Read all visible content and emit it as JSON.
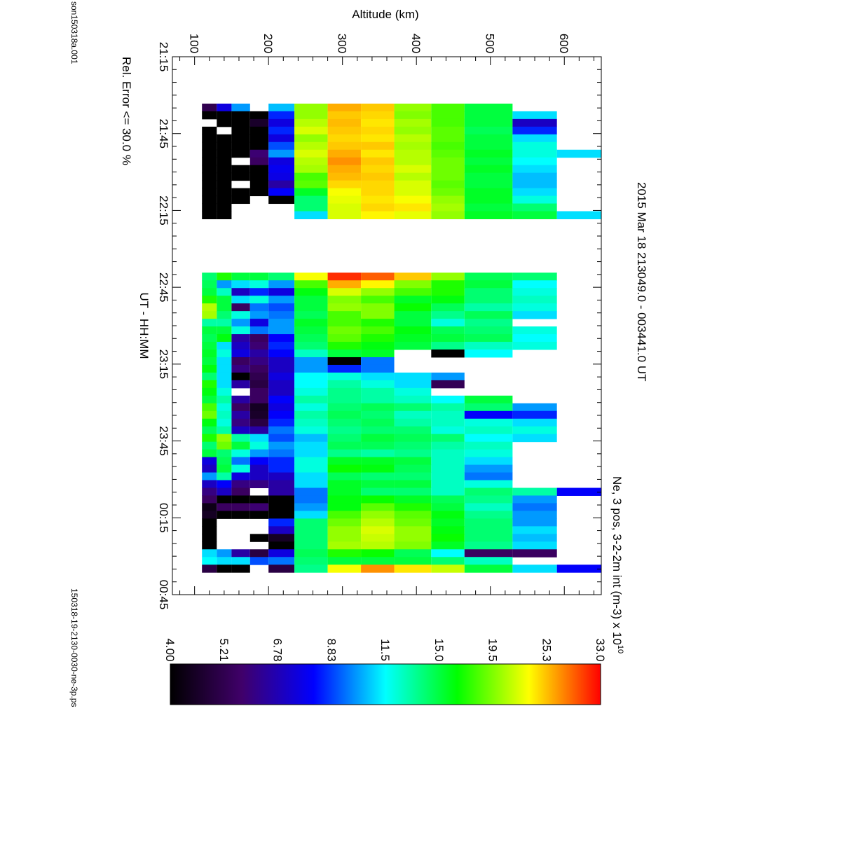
{
  "plot_title_line1": "2015 Mar 18    213049.0 - 003441.0 UT",
  "plot_title_line2": "Ne, 3 pos, 3-2-2m int (m-3) x 10",
  "plot_title_exponent": "10",
  "file_name": "son150318a.001",
  "plot_file": "150318-19-2130-0030-ne-3p.ps",
  "rel_error": "Rel. Error <= 30.0 %",
  "chart_data": {
    "type": "heatmap",
    "ylabel": "Altitude (km)",
    "xlabel": "UT - HH:MM",
    "x_ticks": [
      "21:15",
      "21:45",
      "22:15",
      "22:45",
      "23:15",
      "23:45",
      "00:15",
      "00:45"
    ],
    "y_ticks": [
      "100",
      "200",
      "300",
      "400",
      "500",
      "600"
    ],
    "ylim": [
      70,
      650
    ],
    "colorbar": {
      "tick_labels": [
        "4.00",
        "5.21",
        "6.78",
        "8.83",
        "11.5",
        "15.0",
        "19.5",
        "25.3",
        "33.0"
      ],
      "palette": [
        "#000000",
        "#40006a",
        "#0000ff",
        "#00ffff",
        "#00ff00",
        "#ffff00",
        "#ff0000"
      ]
    },
    "altitude_bins_km": [
      110,
      130,
      150,
      175,
      200,
      235,
      280,
      325,
      370,
      420,
      465,
      530,
      590,
      650
    ],
    "columns": [
      {
        "t": 21.58,
        "v": [
          5.2,
          7.5,
          10.0,
          null,
          10.5,
          20.0,
          26.0,
          25.0,
          20.0,
          18.0,
          15.0
        ]
      },
      {
        "t": 21.63,
        "v": [
          4.0,
          4.0,
          4.0,
          4.0,
          8.5,
          20.0,
          25.0,
          24.5,
          19.5,
          18.0,
          15.0,
          11.0
        ]
      },
      {
        "t": 21.68,
        "v": [
          null,
          4.0,
          4.0,
          4.6,
          7.5,
          21.0,
          25.5,
          24.0,
          20.5,
          18.0,
          15.0,
          7.0
        ]
      },
      {
        "t": 21.73,
        "v": [
          4.0,
          null,
          4.0,
          4.0,
          8.5,
          22.0,
          25.0,
          24.5,
          20.0,
          18.5,
          14.5,
          8.5
        ]
      },
      {
        "t": 21.78,
        "v": [
          4.0,
          4.0,
          4.0,
          4.0,
          7.5,
          20.0,
          24.5,
          24.0,
          21.0,
          18.5,
          15.0,
          11.0
        ]
      },
      {
        "t": 21.83,
        "v": [
          4.0,
          4.0,
          4.0,
          4.0,
          9.0,
          21.0,
          25.0,
          25.0,
          20.5,
          18.0,
          15.0,
          12.0
        ]
      },
      {
        "t": 21.88,
        "v": [
          4.0,
          4.0,
          4.0,
          5.8,
          10.0,
          22.0,
          26.0,
          24.0,
          21.0,
          18.5,
          15.5,
          12.0,
          11.0
        ]
      },
      {
        "t": 21.93,
        "v": [
          4.0,
          4.0,
          null,
          5.5,
          7.5,
          21.0,
          27.0,
          25.0,
          21.0,
          19.0,
          15.0,
          11.5
        ]
      },
      {
        "t": 21.98,
        "v": [
          4.0,
          4.0,
          4.0,
          4.0,
          7.8,
          20.5,
          26.0,
          24.5,
          22.0,
          19.0,
          15.5,
          11.0
        ]
      },
      {
        "t": 22.03,
        "v": [
          4.0,
          4.0,
          4.0,
          4.0,
          7.6,
          18.0,
          25.5,
          25.0,
          21.0,
          19.0,
          15.0,
          10.5
        ]
      },
      {
        "t": 22.08,
        "v": [
          4.0,
          4.0,
          null,
          4.0,
          6.5,
          18.5,
          24.5,
          24.5,
          22.0,
          18.5,
          15.0,
          10.5
        ]
      },
      {
        "t": 22.13,
        "v": [
          4.0,
          4.0,
          4.0,
          4.0,
          8.0,
          15.5,
          23.0,
          24.5,
          22.0,
          19.0,
          15.5,
          11.0
        ]
      },
      {
        "t": 22.18,
        "v": [
          4.0,
          4.0,
          4.0,
          null,
          4.0,
          14.0,
          22.5,
          24.0,
          23.0,
          20.0,
          15.5,
          12.0
        ]
      },
      {
        "t": 22.23,
        "v": [
          4.0,
          4.0,
          null,
          null,
          null,
          14.0,
          22.0,
          24.5,
          24.0,
          20.5,
          15.0,
          14.0
        ]
      },
      {
        "t": 22.28,
        "v": [
          4.0,
          4.0,
          null,
          null,
          null,
          11.0,
          22.0,
          23.5,
          22.5,
          20.0,
          15.5,
          15.0,
          11.0
        ]
      },
      {
        "t": 22.68,
        "v": [
          14.0,
          17.0,
          15.0,
          15.0,
          14.0,
          23.0,
          31.0,
          29.0,
          25.0,
          20.0,
          14.5,
          14.0
        ]
      },
      {
        "t": 22.73,
        "v": [
          14.5,
          10.0,
          11.0,
          12.0,
          10.0,
          18.0,
          26.0,
          23.5,
          19.5,
          17.0,
          15.0,
          11.5
        ]
      },
      {
        "t": 22.78,
        "v": [
          15.0,
          12.5,
          7.0,
          8.5,
          7.5,
          16.0,
          22.0,
          20.0,
          18.0,
          17.0,
          14.0,
          12.0
        ]
      },
      {
        "t": 22.83,
        "v": [
          17.0,
          15.0,
          11.0,
          12.0,
          10.0,
          15.0,
          19.5,
          18.0,
          15.5,
          16.0,
          14.0,
          12.5
        ]
      },
      {
        "t": 22.88,
        "v": [
          21.0,
          15.0,
          5.5,
          9.5,
          9.0,
          15.0,
          20.0,
          19.5,
          16.5,
          14.5,
          13.0,
          12.0
        ]
      },
      {
        "t": 22.93,
        "v": [
          20.5,
          14.0,
          12.0,
          10.0,
          9.5,
          14.5,
          18.0,
          19.5,
          15.0,
          13.5,
          14.5,
          11.0
        ]
      },
      {
        "t": 22.98,
        "v": [
          13.0,
          13.0,
          10.0,
          7.5,
          10.0,
          15.5,
          18.0,
          17.0,
          15.0,
          12.0,
          13.5
        ]
      },
      {
        "t": 23.03,
        "v": [
          15.0,
          15.0,
          12.0,
          9.5,
          10.0,
          15.0,
          19.0,
          18.0,
          16.0,
          14.5,
          14.0,
          12.0
        ]
      },
      {
        "t": 23.08,
        "v": [
          14.5,
          16.0,
          6.5,
          5.5,
          8.0,
          14.5,
          18.5,
          17.0,
          15.5,
          15.0,
          14.5,
          11.5
        ]
      },
      {
        "t": 23.13,
        "v": [
          15.0,
          11.0,
          7.0,
          5.8,
          8.5,
          14.0,
          17.0,
          16.0,
          15.0,
          13.5,
          12.5,
          12.0
        ]
      },
      {
        "t": 23.18,
        "v": [
          15.5,
          12.0,
          7.5,
          6.5,
          8.0,
          12.5,
          15.0,
          15.5,
          null,
          4.0,
          11.5
        ]
      },
      {
        "t": 23.23,
        "v": [
          15.0,
          11.0,
          5.5,
          6.0,
          7.0,
          10.0,
          4.0,
          9.5
        ]
      },
      {
        "t": 23.28,
        "v": [
          16.0,
          11.0,
          6.0,
          5.5,
          7.0,
          10.0,
          8.5,
          9.5
        ]
      },
      {
        "t": 23.33,
        "v": [
          14.0,
          11.0,
          4.0,
          5.2,
          7.5,
          11.5,
          12.0,
          11.0,
          11.0,
          10.0
        ]
      },
      {
        "t": 23.38,
        "v": [
          17.0,
          11.0,
          6.5,
          5.0,
          7.0,
          11.5,
          13.0,
          12.0,
          11.0,
          5.3
        ]
      },
      {
        "t": 23.43,
        "v": [
          16.0,
          12.0,
          null,
          5.5,
          7.0,
          12.0,
          13.5,
          13.0,
          12.0
        ]
      },
      {
        "t": 23.48,
        "v": [
          15.0,
          13.0,
          6.5,
          5.5,
          8.0,
          13.0,
          13.5,
          13.0,
          12.5,
          11.5,
          15.0
        ]
      },
      {
        "t": 23.53,
        "v": [
          18.0,
          12.0,
          5.5,
          4.5,
          7.5,
          12.0,
          14.0,
          14.5,
          14.0,
          13.0,
          14.0,
          10.0
        ]
      },
      {
        "t": 23.58,
        "v": [
          19.0,
          12.5,
          6.5,
          4.6,
          8.0,
          13.0,
          14.5,
          14.0,
          12.5,
          12.5,
          8.0,
          8.5
        ]
      },
      {
        "t": 23.63,
        "v": [
          16.0,
          12.0,
          6.0,
          5.0,
          8.5,
          12.5,
          14.0,
          14.5,
          13.0,
          12.5,
          12.0,
          11.0
        ]
      },
      {
        "t": 23.68,
        "v": [
          14.5,
          13.0,
          7.0,
          6.5,
          9.5,
          12.0,
          13.5,
          14.0,
          14.0,
          12.0,
          12.5,
          12.0
        ]
      },
      {
        "t": 23.73,
        "v": [
          17.0,
          20.0,
          13.0,
          11.0,
          9.0,
          10.5,
          14.0,
          15.0,
          14.5,
          14.0,
          11.5,
          11.0
        ]
      },
      {
        "t": 23.78,
        "v": [
          14.0,
          19.0,
          15.0,
          12.0,
          10.0,
          11.0,
          14.5,
          14.5,
          14.0,
          13.0,
          12.5
        ]
      },
      {
        "t": 23.83,
        "v": [
          15.0,
          14.0,
          12.0,
          10.0,
          9.5,
          11.0,
          13.5,
          13.0,
          13.5,
          12.5,
          12.0
        ]
      },
      {
        "t": 23.88,
        "v": [
          7.5,
          14.5,
          9.5,
          8.0,
          8.5,
          12.0,
          15.5,
          15.5,
          15.0,
          12.5,
          11.0
        ]
      },
      {
        "t": 23.93,
        "v": [
          7.0,
          15.0,
          12.0,
          7.0,
          8.5,
          12.0,
          16.5,
          16.0,
          14.5,
          12.5,
          10.0
        ]
      },
      {
        "t": 23.98,
        "v": [
          10.0,
          13.0,
          7.5,
          7.0,
          7.0,
          11.0,
          14.5,
          14.0,
          14.0,
          12.5,
          9.5
        ]
      },
      {
        "t": 24.03,
        "v": [
          7.0,
          8.0,
          6.0,
          6.0,
          6.5,
          11.0,
          15.5,
          15.0,
          15.0,
          12.5,
          12.0
        ]
      },
      {
        "t": 24.08,
        "v": [
          6.0,
          7.0,
          5.5,
          null,
          6.5,
          9.5,
          15.5,
          14.0,
          14.0,
          12.5,
          14.0,
          13.0,
          8.0
        ]
      },
      {
        "t": 24.13,
        "v": [
          5.5,
          4.0,
          4.0,
          4.0,
          4.0,
          9.5,
          16.0,
          16.5,
          15.5,
          14.5,
          13.5,
          10.0
        ]
      },
      {
        "t": 24.18,
        "v": [
          4.3,
          5.5,
          5.5,
          5.8,
          4.0,
          10.0,
          16.0,
          18.5,
          17.0,
          15.0,
          12.5,
          9.5
        ]
      },
      {
        "t": 24.23,
        "v": [
          4.5,
          4.0,
          4.0,
          4.0,
          4.0,
          11.0,
          18.0,
          20.0,
          18.5,
          16.0,
          13.5,
          10.0
        ]
      },
      {
        "t": 24.28,
        "v": [
          4.0,
          null,
          null,
          null,
          8.5,
          14.0,
          19.0,
          21.0,
          19.0,
          15.5,
          14.0,
          10.0
        ]
      },
      {
        "t": 24.33,
        "v": [
          4.0,
          null,
          null,
          null,
          7.0,
          14.0,
          20.0,
          22.0,
          20.0,
          16.0,
          14.0,
          11.0
        ]
      },
      {
        "t": 24.38,
        "v": [
          4.0,
          null,
          null,
          4.0,
          4.5,
          14.0,
          20.0,
          21.5,
          20.0,
          16.5,
          14.0,
          10.5
        ]
      },
      {
        "t": 24.43,
        "v": [
          4.0,
          null,
          null,
          null,
          4.0,
          14.0,
          20.5,
          21.0,
          19.5,
          15.5,
          13.5,
          11.0
        ]
      },
      {
        "t": 24.48,
        "v": [
          11.0,
          10.0,
          6.5,
          5.0,
          7.5,
          14.5,
          17.0,
          16.5,
          14.5,
          11.5,
          5.5,
          5.5
        ]
      },
      {
        "t": 24.53,
        "v": [
          11.5,
          11.0,
          11.0,
          9.0,
          9.5,
          14.0,
          15.0,
          15.0,
          15.0,
          14.0,
          12.5
        ]
      },
      {
        "t": 24.58,
        "v": [
          5.0,
          4.0,
          4.0,
          null,
          5.0,
          13.5,
          23.0,
          27.0,
          24.0,
          21.5,
          15.0,
          11.0,
          8.0
        ]
      }
    ]
  }
}
